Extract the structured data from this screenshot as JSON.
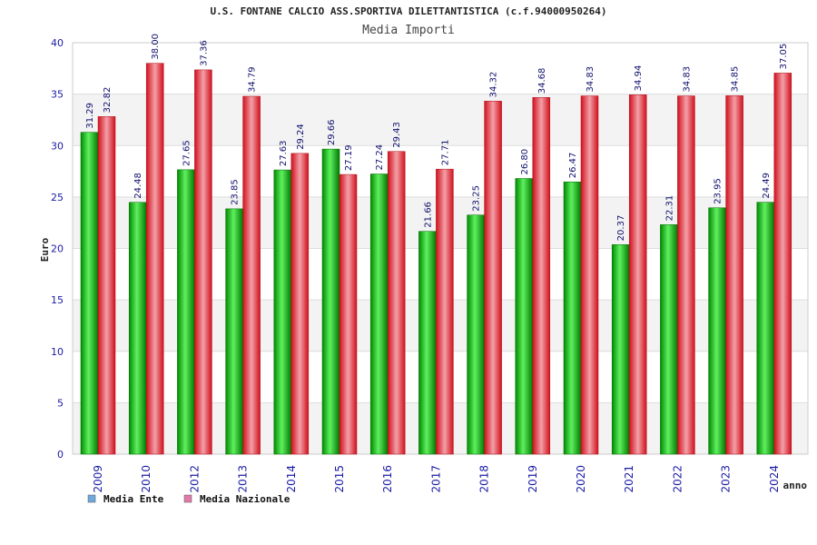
{
  "chart_data": {
    "type": "bar",
    "title": "U.S. FONTANE CALCIO ASS.SPORTIVA DILETTANTISTICA (c.f.94000950264)",
    "subtitle": "Media Importi",
    "xlabel": "anno",
    "ylabel": "Euro",
    "ylim": [
      0,
      40
    ],
    "yticks": [
      0,
      5,
      10,
      15,
      20,
      25,
      30,
      35,
      40
    ],
    "grid": true,
    "legend_position": "bottom-left",
    "categories": [
      "2009",
      "2010",
      "2012",
      "2013",
      "2014",
      "2015",
      "2016",
      "2017",
      "2018",
      "2019",
      "2020",
      "2021",
      "2022",
      "2023",
      "2024"
    ],
    "series": [
      {
        "name": "Media Ente",
        "color": "#00c000",
        "legend_color": "#6fa8dc",
        "values": [
          31.29,
          24.48,
          27.65,
          23.85,
          27.63,
          29.66,
          27.24,
          21.66,
          23.25,
          26.8,
          26.47,
          20.37,
          22.31,
          23.95,
          24.49
        ],
        "labels": [
          "31.29",
          "24.48",
          "27.65",
          "23.85",
          "27.63",
          "29.66",
          "27.24",
          "21.66",
          "23.25",
          "26.80",
          "26.47",
          "20.37",
          "22.31",
          "23.95",
          "24.49"
        ]
      },
      {
        "name": "Media Nazionale",
        "color": "#ee1c2a",
        "legend_color": "#e07aa8",
        "values": [
          32.82,
          38.0,
          37.36,
          34.79,
          29.24,
          27.19,
          29.43,
          27.71,
          34.32,
          34.68,
          34.83,
          34.94,
          34.83,
          34.85,
          37.05
        ],
        "labels": [
          "32.82",
          "38.00",
          "37.36",
          "34.79",
          "29.24",
          "27.19",
          "29.43",
          "27.71",
          "34.32",
          "34.68",
          "34.83",
          "34.94",
          "34.83",
          "34.85",
          "37.05"
        ]
      }
    ]
  }
}
